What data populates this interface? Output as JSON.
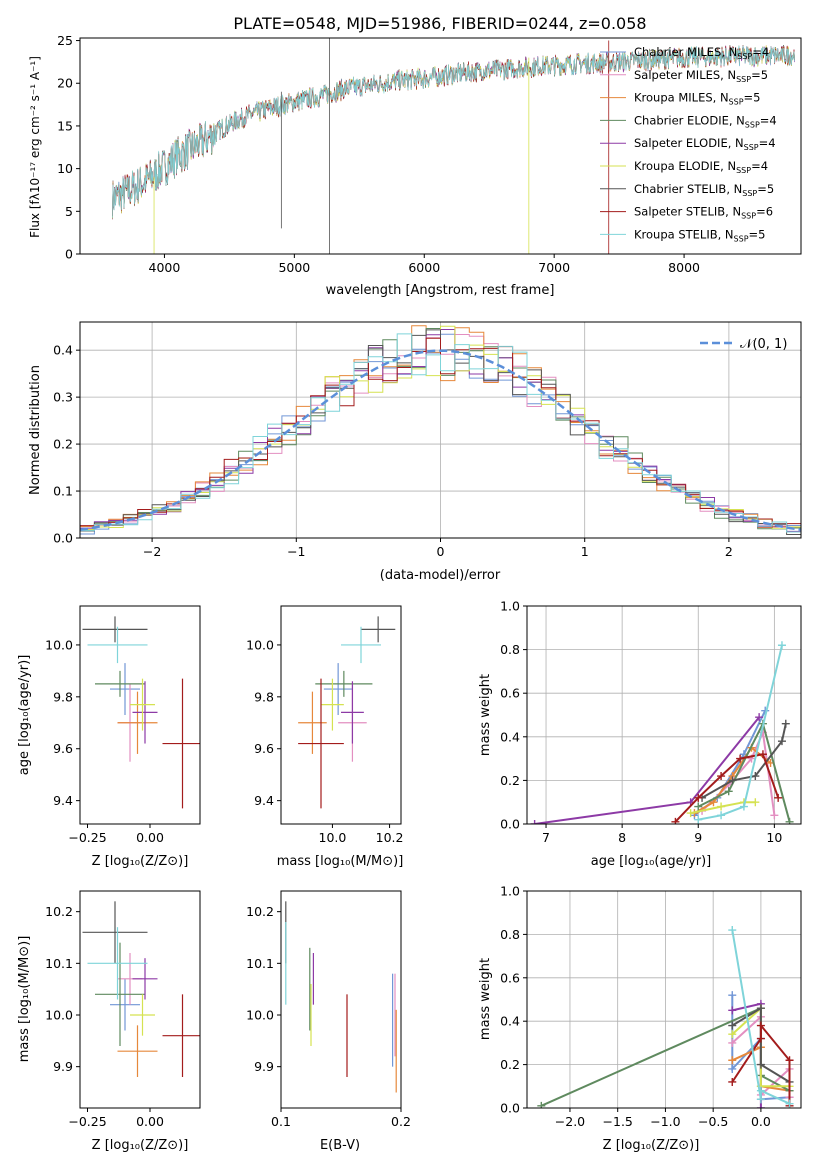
{
  "colors": [
    "#7196d6",
    "#e38fc1",
    "#e6883b",
    "#5f8a5f",
    "#8d3aa6",
    "#d5e251",
    "#555555",
    "#a31c1c",
    "#7fd4d9"
  ],
  "chart_data": [
    {
      "id": "spectrum",
      "type": "line",
      "title": "PLATE=0548, MJD=51986, FIBERID=0244, z=0.058",
      "xlabel": "wavelength [Angstrom, rest frame]",
      "ylabel": "Flux [fλ10⁻¹⁷ erg cm⁻² s⁻¹ A⁻¹]",
      "xlim": [
        3350,
        8900
      ],
      "ylim": [
        0,
        25.3
      ],
      "xticks": [
        4000,
        5000,
        6000,
        7000,
        8000
      ],
      "yticks": [
        0,
        5,
        10,
        15,
        20,
        25
      ],
      "continuum": {
        "x": [
          3600,
          3700,
          3800,
          3900,
          4000,
          4100,
          4200,
          4300,
          4400,
          4500,
          4600,
          4800,
          5000,
          5200,
          5400,
          5600,
          5800,
          6000,
          6200,
          6400,
          6600,
          6800,
          7000,
          7200,
          7400,
          7600,
          7800,
          8000,
          8200,
          8400,
          8600,
          8850
        ],
        "y": [
          6.5,
          7.2,
          8.0,
          9.0,
          10.2,
          11.5,
          12.3,
          13.2,
          14.3,
          15.2,
          16.0,
          17.0,
          17.8,
          18.5,
          19.4,
          19.8,
          20.3,
          20.6,
          21.0,
          21.4,
          21.6,
          21.9,
          22.1,
          22.3,
          22.4,
          22.6,
          22.8,
          23.0,
          23.1,
          23.2,
          23.2,
          23.3
        ]
      },
      "legend_loc": "right",
      "legend": [
        "Chabrier MILES, N_SSP=4",
        "Salpeter MILES, N_SSP=5",
        "Kroupa MILES, N_SSP=5",
        "Chabrier ELODIE, N_SSP=4",
        "Salpeter ELODIE, N_SSP=4",
        "Kroupa ELODIE, N_SSP=4",
        "Chabrier STELIB, N_SSP=5",
        "Salpeter STELIB, N_SSP=6",
        "Kroupa STELIB, N_SSP=5"
      ]
    },
    {
      "id": "residuals",
      "type": "line",
      "xlabel": "(data-model)/error",
      "ylabel": "Normed distribution",
      "xlim": [
        -2.5,
        2.5
      ],
      "ylim": [
        0,
        0.46
      ],
      "xticks": [
        -2,
        -1,
        0,
        1,
        2
      ],
      "yticks": [
        0.0,
        0.1,
        0.2,
        0.3,
        0.4
      ],
      "grid": true,
      "gaussian_label": "𝒩(0, 1)",
      "bin_width": 0.1
    },
    {
      "id": "age_vs_Z",
      "type": "scatter",
      "xlabel": "Z [log₁₀(Z/Z⊙)]",
      "ylabel": "age  [log₁₀(age/yr)]",
      "xlim": [
        -0.28,
        0.2
      ],
      "ylim": [
        9.31,
        10.15
      ],
      "xticks": [
        -0.25,
        0.0
      ],
      "yticks": [
        9.4,
        9.6,
        9.8,
        10.0
      ],
      "x": [
        -0.1,
        -0.08,
        -0.05,
        -0.12,
        -0.02,
        -0.03,
        -0.14,
        0.13,
        -0.13
      ],
      "xerr": [
        0.06,
        0.05,
        0.08,
        0.1,
        0.05,
        0.05,
        0.13,
        0.08,
        0.12
      ],
      "y": [
        9.83,
        9.7,
        9.7,
        9.85,
        9.74,
        9.77,
        10.06,
        9.62,
        10.0
      ],
      "yerr": [
        0.1,
        0.15,
        0.12,
        0.05,
        0.12,
        0.1,
        0.05,
        0.25,
        0.07
      ]
    },
    {
      "id": "age_vs_mass",
      "type": "scatter",
      "xlabel": "mass [log₁₀(M/M⊙)]",
      "ylabel": "",
      "xlim": [
        9.82,
        10.24
      ],
      "ylim": [
        9.31,
        10.15
      ],
      "xticks": [
        10.0,
        10.2
      ],
      "yticks": [
        9.4,
        9.6,
        9.8,
        10.0
      ],
      "x": [
        10.02,
        10.07,
        9.93,
        10.04,
        10.07,
        10.0,
        10.16,
        9.96,
        10.1
      ],
      "xerr": [
        0.05,
        0.05,
        0.05,
        0.1,
        0.04,
        0.04,
        0.06,
        0.08,
        0.07
      ],
      "y": [
        9.83,
        9.7,
        9.7,
        9.85,
        9.74,
        9.77,
        10.06,
        9.62,
        10.0
      ],
      "yerr": [
        0.1,
        0.15,
        0.12,
        0.05,
        0.12,
        0.1,
        0.05,
        0.25,
        0.07
      ]
    },
    {
      "id": "mass_weight_vs_age",
      "type": "line",
      "xlabel": "age  [log₁₀(age/yr)]",
      "ylabel": "mass weight",
      "xlim": [
        6.75,
        10.35
      ],
      "ylim": [
        0,
        1
      ],
      "xticks": [
        7,
        8,
        9,
        10
      ],
      "yticks": [
        0.0,
        0.2,
        0.4,
        0.6,
        0.8,
        1.0
      ],
      "grid": true,
      "series": [
        {
          "x": [
            8.95,
            9.25,
            9.6,
            9.88
          ],
          "y": [
            0.04,
            0.12,
            0.32,
            0.52
          ]
        },
        {
          "x": [
            9.05,
            9.4,
            9.7,
            9.85,
            10.0
          ],
          "y": [
            0.06,
            0.18,
            0.3,
            0.42,
            0.04
          ]
        },
        {
          "x": [
            8.95,
            9.2,
            9.45,
            9.7,
            9.95
          ],
          "y": [
            0.05,
            0.1,
            0.22,
            0.35,
            0.28
          ]
        },
        {
          "x": [
            9.0,
            9.4,
            9.85,
            10.2
          ],
          "y": [
            0.08,
            0.15,
            0.46,
            0.01
          ]
        },
        {
          "x": [
            6.85,
            8.9,
            9.8
          ],
          "y": [
            0.0,
            0.1,
            0.49
          ]
        },
        {
          "x": [
            8.9,
            9.3,
            9.6,
            9.75
          ],
          "y": [
            0.05,
            0.08,
            0.1,
            0.1
          ]
        },
        {
          "x": [
            9.05,
            9.45,
            9.75,
            10.1,
            10.15
          ],
          "y": [
            0.12,
            0.2,
            0.22,
            0.38,
            0.46
          ]
        },
        {
          "x": [
            8.7,
            9.0,
            9.3,
            9.55,
            9.85,
            10.05
          ],
          "y": [
            0.01,
            0.12,
            0.22,
            0.3,
            0.32,
            0.12
          ]
        },
        {
          "x": [
            9.0,
            9.3,
            9.6,
            10.1
          ],
          "y": [
            0.02,
            0.04,
            0.08,
            0.82
          ]
        }
      ]
    },
    {
      "id": "mass_vs_Z",
      "type": "scatter",
      "xlabel": "Z [log₁₀(Z/Z⊙)]",
      "ylabel": "mass [log₁₀(M/M⊙)]",
      "xlim": [
        -0.28,
        0.2
      ],
      "ylim": [
        9.82,
        10.24
      ],
      "xticks": [
        -0.25,
        0.0
      ],
      "yticks": [
        9.9,
        10.0,
        10.1,
        10.2
      ],
      "x": [
        -0.1,
        -0.08,
        -0.05,
        -0.12,
        -0.02,
        -0.03,
        -0.14,
        0.13,
        -0.13
      ],
      "xerr": [
        0.06,
        0.05,
        0.08,
        0.1,
        0.05,
        0.05,
        0.13,
        0.08,
        0.12
      ],
      "y": [
        10.02,
        10.07,
        9.93,
        10.04,
        10.07,
        10.0,
        10.16,
        9.96,
        10.1
      ],
      "yerr": [
        0.05,
        0.05,
        0.05,
        0.1,
        0.04,
        0.04,
        0.06,
        0.08,
        0.07
      ]
    },
    {
      "id": "mass_vs_ebv",
      "type": "scatter",
      "xlabel": "E(B-V)",
      "ylabel": "",
      "xlim": [
        0.1,
        0.2
      ],
      "ylim": [
        9.82,
        10.24
      ],
      "xticks": [
        0.1,
        0.2
      ],
      "yticks": [
        9.9,
        10.0,
        10.1,
        10.2
      ],
      "x": [
        0.193,
        0.195,
        0.196,
        0.124,
        0.127,
        0.125,
        0.104,
        0.155,
        0.104
      ],
      "y": [
        9.99,
        10.0,
        9.93,
        10.05,
        10.07,
        10.0,
        10.16,
        9.96,
        10.1
      ],
      "yerr": [
        0.09,
        0.08,
        0.08,
        0.08,
        0.05,
        0.06,
        0.06,
        0.08,
        0.08
      ]
    },
    {
      "id": "mass_weight_vs_Z",
      "type": "line",
      "xlabel": "Z [log₁₀(Z/Z⊙)]",
      "ylabel": "mass weight",
      "xlim": [
        -2.45,
        0.42
      ],
      "ylim": [
        0,
        1
      ],
      "xticks": [
        -2.0,
        -1.5,
        -1.0,
        -0.5,
        0.0
      ],
      "yticks": [
        0.0,
        0.2,
        0.4,
        0.6,
        0.8,
        1.0
      ],
      "grid": true,
      "series": [
        {
          "x": [
            -0.3,
            -0.3,
            0.0,
            0.0,
            0.3
          ],
          "y": [
            0.52,
            0.18,
            0.32,
            0.04,
            0.05
          ]
        },
        {
          "x": [
            -0.3,
            0.0,
            0.0,
            0.3,
            0.3
          ],
          "y": [
            0.3,
            0.42,
            0.06,
            0.18,
            0.05
          ]
        },
        {
          "x": [
            -0.3,
            0.0,
            0.0,
            0.3
          ],
          "y": [
            0.22,
            0.28,
            0.1,
            0.08
          ]
        },
        {
          "x": [
            -2.3,
            0.0,
            0.0,
            0.3
          ],
          "y": [
            0.01,
            0.46,
            0.15,
            0.08
          ]
        },
        {
          "x": [
            -0.3,
            0.0,
            0.0
          ],
          "y": [
            0.45,
            0.48,
            0.0
          ]
        },
        {
          "x": [
            -0.3,
            0.0,
            0.0,
            0.3
          ],
          "y": [
            0.34,
            0.46,
            0.1,
            0.1
          ]
        },
        {
          "x": [
            -0.3,
            0.0,
            0.0,
            0.3
          ],
          "y": [
            0.38,
            0.46,
            0.2,
            0.12
          ]
        },
        {
          "x": [
            -0.3,
            0.0,
            0.0,
            0.3,
            0.3
          ],
          "y": [
            0.12,
            0.32,
            0.38,
            0.22,
            0.01
          ]
        },
        {
          "x": [
            -0.3,
            0.0,
            0.0,
            0.3
          ],
          "y": [
            0.82,
            0.04,
            0.08,
            0.02
          ]
        }
      ]
    }
  ]
}
